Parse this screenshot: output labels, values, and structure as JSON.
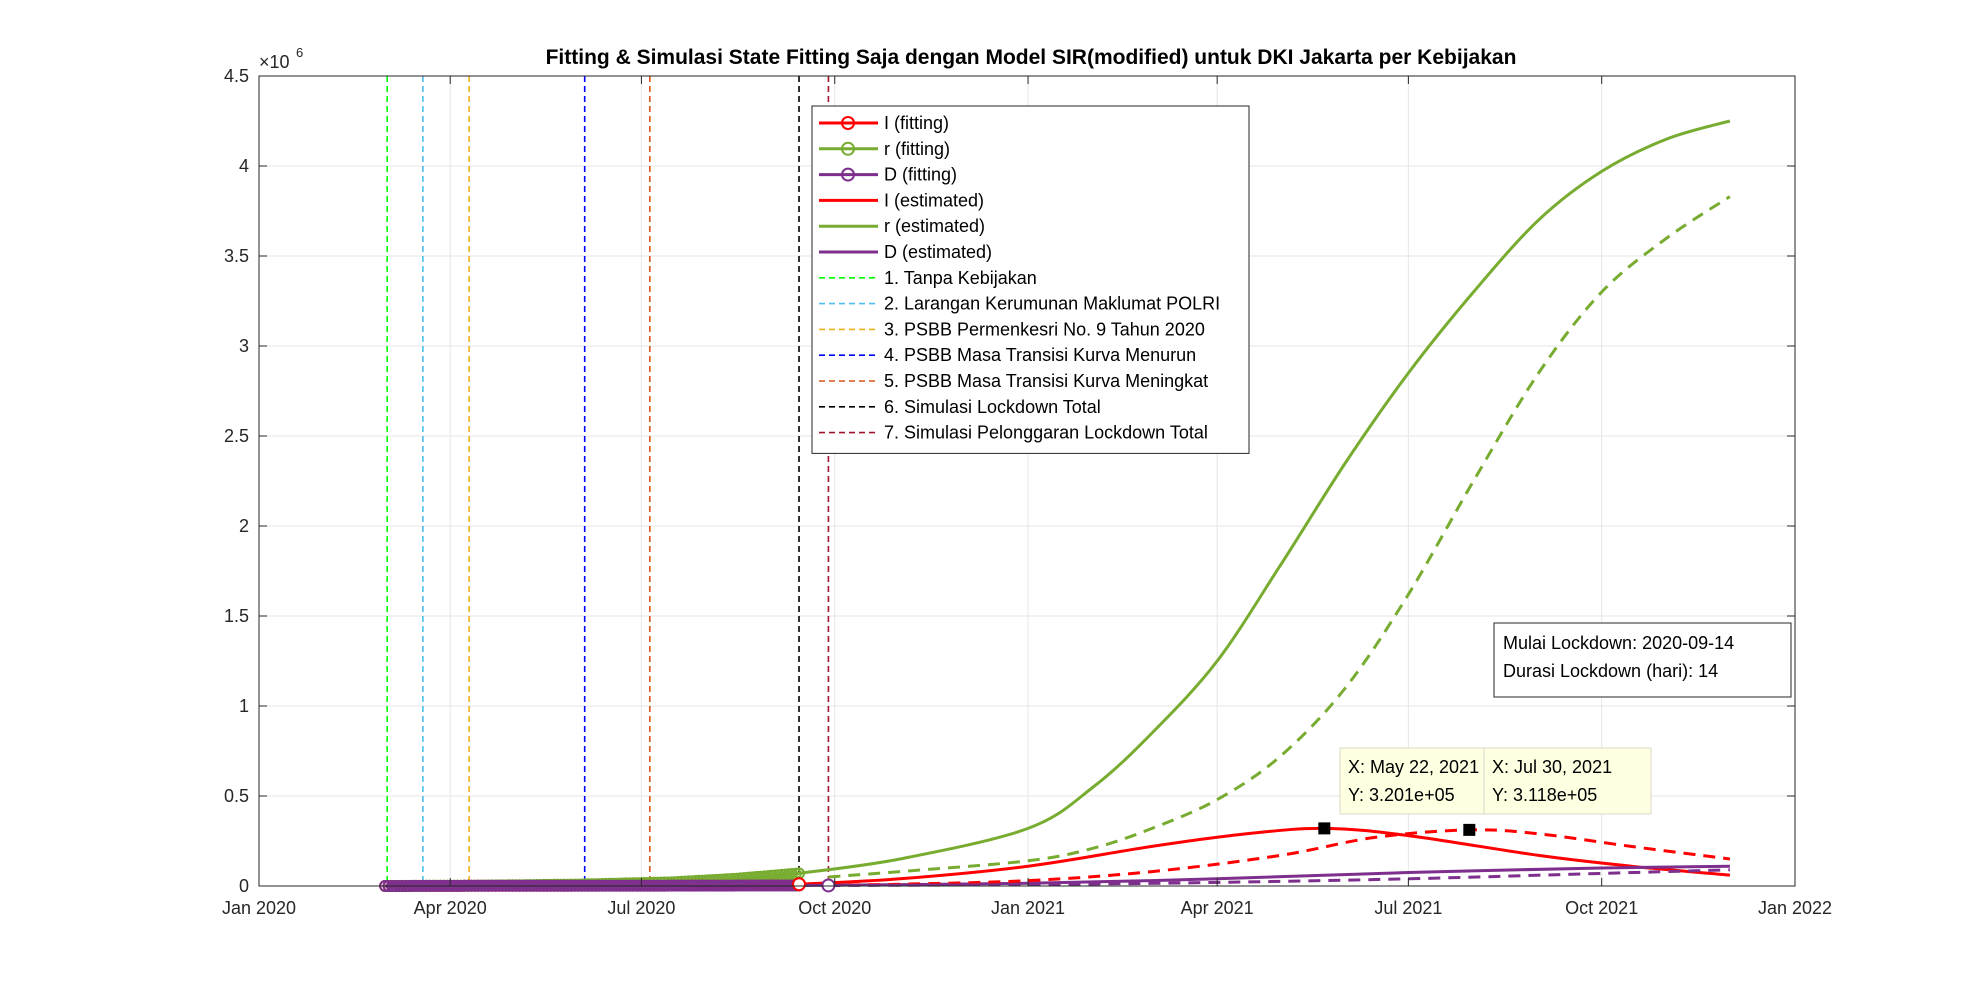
{
  "chart_data": {
    "type": "line",
    "title": "Fitting & Simulasi State Fitting Saja dengan Model SIR(modified) untuk DKI Jakarta per Kebijakan",
    "xlabel": "",
    "ylabel": "",
    "y_exponent_label": "×10",
    "y_exponent": "6",
    "xlim": [
      "2020-01-01",
      "2022-01-01"
    ],
    "ylim": [
      0,
      4.5
    ],
    "grid": true,
    "x_ticks": [
      {
        "date": "2020-01-01",
        "label": "Jan 2020"
      },
      {
        "date": "2020-04-01",
        "label": "Apr 2020"
      },
      {
        "date": "2020-07-01",
        "label": "Jul 2020"
      },
      {
        "date": "2020-10-01",
        "label": "Oct 2020"
      },
      {
        "date": "2021-01-01",
        "label": "Jan 2021"
      },
      {
        "date": "2021-04-01",
        "label": "Apr 2021"
      },
      {
        "date": "2021-07-01",
        "label": "Jul 2021"
      },
      {
        "date": "2021-10-01",
        "label": "Oct 2021"
      },
      {
        "date": "2022-01-01",
        "label": "Jan 2022"
      }
    ],
    "y_ticks": [
      {
        "value": 0,
        "label": "0"
      },
      {
        "value": 0.5,
        "label": "0.5"
      },
      {
        "value": 1,
        "label": "1"
      },
      {
        "value": 1.5,
        "label": "1.5"
      },
      {
        "value": 2,
        "label": "2"
      },
      {
        "value": 2.5,
        "label": "2.5"
      },
      {
        "value": 3,
        "label": "3"
      },
      {
        "value": 3.5,
        "label": "3.5"
      },
      {
        "value": 4,
        "label": "4"
      },
      {
        "value": 4.5,
        "label": "4.5"
      }
    ],
    "colors": {
      "I": "#ff0000",
      "r": "#77ac30",
      "D": "#7e2f8e",
      "policy1": "#00ff00",
      "policy2": "#4dbeee",
      "policy3": "#edb120",
      "policy4": "#0000ff",
      "policy5": "#d95319",
      "policy6": "#000000",
      "policy7": "#a2142f"
    },
    "series": [
      {
        "key": "I_fit",
        "name": "I (fitting)",
        "color": "#ff0000",
        "style": "solid-marker",
        "x": [
          "2020-03-01",
          "2020-04-15",
          "2020-06-01",
          "2020-07-15",
          "2020-09-14"
        ],
        "y": [
          0,
          0.001,
          0.002,
          0.004,
          0.01
        ]
      },
      {
        "key": "r_fit",
        "name": "r (fitting)",
        "color": "#77ac30",
        "style": "solid-marker",
        "x": [
          "2020-03-01",
          "2020-04-15",
          "2020-06-01",
          "2020-07-15",
          "2020-08-15",
          "2020-09-14"
        ],
        "y": [
          0,
          0.002,
          0.008,
          0.02,
          0.04,
          0.07
        ]
      },
      {
        "key": "D_fit",
        "name": "D (fitting)",
        "color": "#7e2f8e",
        "style": "solid-marker",
        "x": [
          "2020-03-01",
          "2020-04-15",
          "2020-06-01",
          "2020-07-15",
          "2020-09-14"
        ],
        "y": [
          0,
          0.001,
          0.001,
          0.002,
          0.003
        ]
      },
      {
        "key": "I_est",
        "name": "I (estimated)",
        "color": "#ff0000",
        "style": "solid",
        "x": [
          "2020-09-14",
          "2020-11-01",
          "2021-01-01",
          "2021-03-01",
          "2021-04-15",
          "2021-05-22",
          "2021-07-01",
          "2021-09-01",
          "2021-10-15",
          "2021-12-01"
        ],
        "y": [
          0.01,
          0.04,
          0.11,
          0.22,
          0.29,
          0.3201,
          0.28,
          0.17,
          0.11,
          0.06
        ]
      },
      {
        "key": "r_est",
        "name": "r (estimated)",
        "color": "#77ac30",
        "style": "solid",
        "x": [
          "2020-09-14",
          "2020-11-01",
          "2021-01-01",
          "2021-02-01",
          "2021-03-01",
          "2021-04-01",
          "2021-05-01",
          "2021-06-01",
          "2021-07-01",
          "2021-08-01",
          "2021-09-01",
          "2021-10-01",
          "2021-11-01",
          "2021-12-01"
        ],
        "y": [
          0.07,
          0.15,
          0.32,
          0.55,
          0.85,
          1.25,
          1.78,
          2.35,
          2.85,
          3.3,
          3.7,
          3.97,
          4.15,
          4.25
        ]
      },
      {
        "key": "D_est",
        "name": "D (estimated)",
        "color": "#7e2f8e",
        "style": "solid",
        "x": [
          "2020-09-14",
          "2021-01-01",
          "2021-04-01",
          "2021-07-01",
          "2021-10-01",
          "2021-12-01"
        ],
        "y": [
          0.003,
          0.015,
          0.04,
          0.075,
          0.1,
          0.11
        ]
      },
      {
        "key": "I_sim",
        "name": "",
        "color": "#ff0000",
        "style": "dashed",
        "x": [
          "2020-09-28",
          "2020-11-01",
          "2021-01-01",
          "2021-03-01",
          "2021-05-01",
          "2021-06-15",
          "2021-07-30",
          "2021-09-01",
          "2021-10-15",
          "2021-12-01"
        ],
        "y": [
          0.005,
          0.01,
          0.03,
          0.08,
          0.17,
          0.27,
          0.3118,
          0.29,
          0.22,
          0.15
        ]
      },
      {
        "key": "r_sim",
        "name": "",
        "color": "#77ac30",
        "style": "dashed",
        "x": [
          "2020-09-28",
          "2020-11-01",
          "2021-01-01",
          "2021-02-01",
          "2021-03-01",
          "2021-04-01",
          "2021-05-01",
          "2021-06-01",
          "2021-07-01",
          "2021-08-01",
          "2021-09-01",
          "2021-10-01",
          "2021-11-01",
          "2021-12-01"
        ],
        "y": [
          0.05,
          0.08,
          0.14,
          0.21,
          0.32,
          0.48,
          0.72,
          1.1,
          1.62,
          2.25,
          2.85,
          3.3,
          3.6,
          3.83
        ]
      },
      {
        "key": "D_sim",
        "name": "",
        "color": "#7e2f8e",
        "style": "dashed",
        "x": [
          "2020-09-28",
          "2021-01-01",
          "2021-04-01",
          "2021-07-01",
          "2021-10-01",
          "2021-12-01"
        ],
        "y": [
          0.003,
          0.008,
          0.02,
          0.04,
          0.07,
          0.09
        ]
      }
    ],
    "policies": [
      {
        "label": "1. Tanpa Kebijakan",
        "date": "2020-03-02",
        "color": "#00ff00"
      },
      {
        "label": "2. Larangan Kerumunan Maklumat POLRI",
        "date": "2020-03-19",
        "color": "#4dbeee"
      },
      {
        "label": "3. PSBB Permenkesri No. 9 Tahun 2020",
        "date": "2020-04-10",
        "color": "#edb120"
      },
      {
        "label": "4. PSBB Masa Transisi Kurva Menurun",
        "date": "2020-06-04",
        "color": "#0000ff"
      },
      {
        "label": "5. PSBB Masa Transisi Kurva Meningkat",
        "date": "2020-07-05",
        "color": "#d95319"
      },
      {
        "label": "6. Simulasi Lockdown Total",
        "date": "2020-09-14",
        "color": "#000000"
      },
      {
        "label": "7. Simulasi Pelonggaran Lockdown Total",
        "date": "2020-09-28",
        "color": "#a2142f"
      }
    ],
    "open_markers": [
      {
        "date": "2020-09-14",
        "value": 0.01,
        "color": "#ff0000"
      },
      {
        "date": "2020-09-28",
        "value": 0.003,
        "color": "#7e2f8e"
      }
    ],
    "datatips": [
      {
        "date": "2021-05-22",
        "value": 0.3201,
        "x_text": "X: May 22, 2021",
        "y_text": "Y: 3.201e+05"
      },
      {
        "date": "2021-07-30",
        "value": 0.3118,
        "x_text": "X: Jul 30, 2021",
        "y_text": "Y: 3.118e+05"
      }
    ],
    "info_box": {
      "line1": "Mulai Lockdown: 2020-09-14",
      "line2": "Durasi Lockdown (hari): 14"
    },
    "legend_placement": "top-center"
  }
}
